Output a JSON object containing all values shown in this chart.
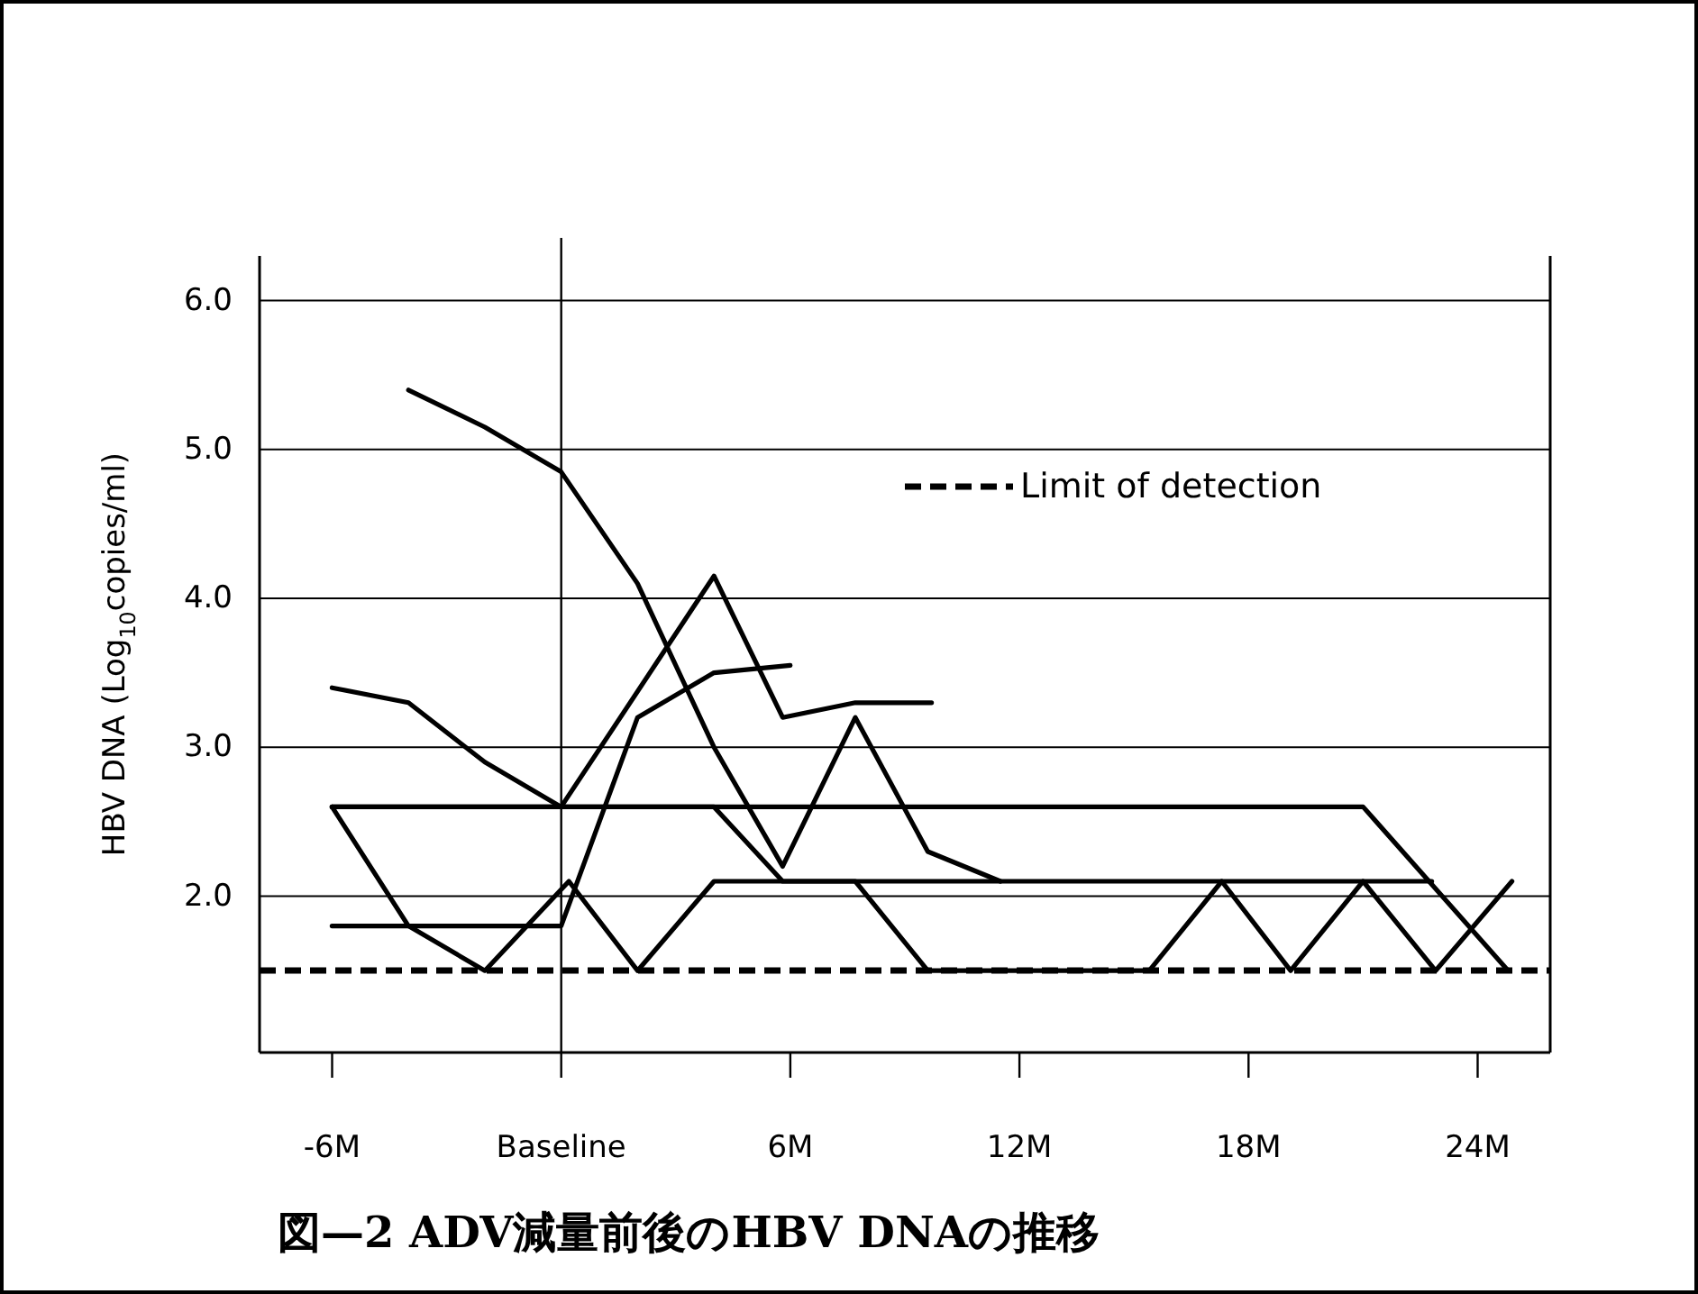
{
  "chart_data": {
    "type": "line",
    "title": "図—2 ADV減量前後のHBV DNAの推移",
    "ylabel": "HBV DNA (Log$_{10}$copies/ml)",
    "xlim": [
      -7.9,
      25.9
    ],
    "ylim": [
      0.95,
      6.3
    ],
    "xticks": [
      {
        "value": -6,
        "label": "-6M"
      },
      {
        "value": 0,
        "label": "Baseline"
      },
      {
        "value": 6,
        "label": "6M"
      },
      {
        "value": 12,
        "label": "12M"
      },
      {
        "value": 18,
        "label": "18M"
      },
      {
        "value": 24,
        "label": "24M"
      }
    ],
    "yticks": [
      {
        "value": 2,
        "label": "2.0"
      },
      {
        "value": 3,
        "label": "3.0"
      },
      {
        "value": 4,
        "label": "4.0"
      },
      {
        "value": 5,
        "label": "5.0"
      },
      {
        "value": 6,
        "label": "6.0"
      }
    ],
    "grid": "y",
    "line_style": "solid",
    "ref_lines": [
      {
        "axis": "x",
        "value": 0,
        "line_style": "solid",
        "color": "#000000"
      },
      {
        "axis": "y",
        "value": 1.5,
        "label": "Limit of detection",
        "line_style": "dashed",
        "color": "#000000"
      }
    ],
    "series": [
      {
        "color": "#000000",
        "x": [
          -4,
          -2,
          0,
          2,
          4,
          5.8,
          7.7,
          9.6,
          11.5
        ],
        "values": [
          5.4,
          5.15,
          4.85,
          4.1,
          3.0,
          2.2,
          3.2,
          2.3,
          2.1
        ]
      },
      {
        "color": "#000000",
        "x": [
          -6,
          -4,
          -2,
          0,
          4,
          5.8,
          7.7,
          9.7
        ],
        "values": [
          3.4,
          3.3,
          2.9,
          2.6,
          4.15,
          3.2,
          3.3,
          3.3
        ]
      },
      {
        "color": "#000000",
        "x": [
          -6,
          0,
          2,
          4,
          6
        ],
        "values": [
          1.8,
          1.8,
          3.2,
          3.5,
          3.55
        ]
      },
      {
        "color": "#000000",
        "x": [
          -6,
          21,
          24.8
        ],
        "values": [
          2.6,
          2.6,
          1.5
        ]
      },
      {
        "color": "#000000",
        "x": [
          -6,
          0,
          4,
          5.8,
          7.7,
          9.6,
          15.4,
          17.3,
          19.1,
          21,
          22.9,
          24.9
        ],
        "values": [
          2.6,
          2.6,
          2.6,
          2.1,
          2.1,
          1.5,
          1.5,
          2.1,
          1.5,
          2.1,
          1.5,
          2.1
        ]
      },
      {
        "color": "#000000",
        "x": [
          -6,
          -4,
          -2,
          0.2,
          2,
          4,
          22.8
        ],
        "values": [
          2.6,
          1.8,
          1.5,
          2.1,
          1.5,
          2.1,
          2.1
        ]
      }
    ]
  }
}
